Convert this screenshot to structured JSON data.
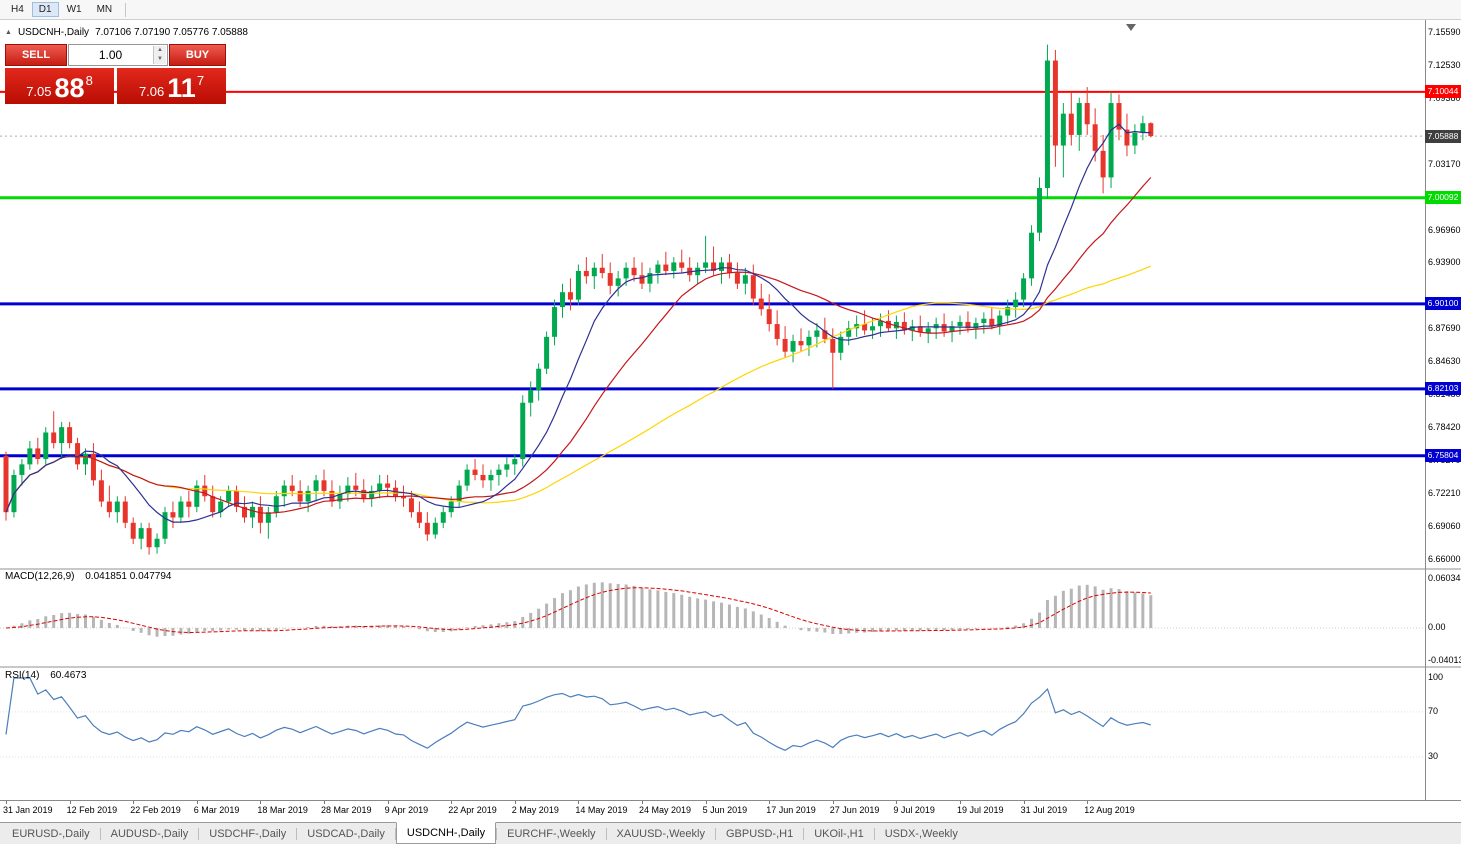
{
  "toolbar": {
    "timeframes": [
      {
        "label": "H4"
      },
      {
        "label": "D1"
      },
      {
        "label": "W1"
      },
      {
        "label": "MN"
      }
    ],
    "active": "D1"
  },
  "chart_header": {
    "collapse_icon": "▲",
    "symbol": "USDCNH-,Daily",
    "ohlc": "7.07106 7.07190 7.05776 7.05888"
  },
  "trade_panel": {
    "sell_label": "SELL",
    "buy_label": "BUY",
    "volume": "1.00",
    "sell_price": {
      "head": "7.05",
      "big": "88",
      "sup": "8"
    },
    "buy_price": {
      "head": "7.06",
      "big": "11",
      "sup": "7"
    }
  },
  "colors": {
    "bull": "#00a94f",
    "bear": "#e8352b",
    "ma_fast": "#2e3192",
    "ma_medium": "#c4161c",
    "ma_slow": "#ffd400",
    "macd_hist": "#b6b6b6",
    "macd_signal": "#e00000",
    "rsi": "#4a7ebb",
    "tag_current": "#3f3f3f"
  },
  "price_axis": {
    "labels": [
      7.1559,
      7.1253,
      7.0938,
      7.0317,
      6.9696,
      6.939,
      6.8769,
      6.8463,
      6.8148,
      6.7842,
      6.7527,
      6.7221,
      6.6906,
      6.66
    ]
  },
  "hlines": [
    {
      "price": 7.10044,
      "color": "#ff0000",
      "width": 2
    },
    {
      "price": 7.00092,
      "color": "#00dc00",
      "width": 3
    },
    {
      "price": 6.901,
      "color": "#0000d2",
      "width": 3
    },
    {
      "price": 6.82103,
      "color": "#0000d2",
      "width": 3
    },
    {
      "price": 6.75804,
      "color": "#0000d2",
      "width": 3
    }
  ],
  "current_price": 7.05888,
  "chart_data": {
    "type": "candlestick",
    "symbol": "USDCNH",
    "timeframe": "Daily",
    "x_labels": [
      "31 Jan 2019",
      "12 Feb 2019",
      "22 Feb 2019",
      "6 Mar 2019",
      "18 Mar 2019",
      "28 Mar 2019",
      "9 Apr 2019",
      "22 Apr 2019",
      "2 May 2019",
      "14 May 2019",
      "24 May 2019",
      "5 Jun 2019",
      "17 Jun 2019",
      "27 Jun 2019",
      "9 Jul 2019",
      "19 Jul 2019",
      "31 Jul 2019",
      "12 Aug 2019"
    ],
    "x_label_step": 8,
    "ma_periods": {
      "fast": 10,
      "medium": 21,
      "slow": 50
    },
    "candles": [
      [
        6.758,
        6.762,
        6.697,
        6.705
      ],
      [
        6.705,
        6.745,
        6.7,
        6.74
      ],
      [
        6.74,
        6.755,
        6.73,
        6.75
      ],
      [
        6.75,
        6.772,
        6.745,
        6.765
      ],
      [
        6.765,
        6.775,
        6.75,
        6.755
      ],
      [
        6.755,
        6.785,
        6.75,
        6.78
      ],
      [
        6.78,
        6.8,
        6.765,
        6.77
      ],
      [
        6.77,
        6.79,
        6.755,
        6.785
      ],
      [
        6.785,
        6.79,
        6.765,
        6.77
      ],
      [
        6.77,
        6.775,
        6.745,
        6.75
      ],
      [
        6.75,
        6.765,
        6.74,
        6.76
      ],
      [
        6.76,
        6.77,
        6.73,
        6.735
      ],
      [
        6.735,
        6.745,
        6.71,
        6.715
      ],
      [
        6.715,
        6.73,
        6.7,
        6.705
      ],
      [
        6.705,
        6.72,
        6.695,
        6.715
      ],
      [
        6.715,
        6.72,
        6.69,
        6.695
      ],
      [
        6.695,
        6.7,
        6.675,
        6.68
      ],
      [
        6.68,
        6.695,
        6.67,
        6.69
      ],
      [
        6.69,
        6.695,
        6.665,
        6.672
      ],
      [
        6.672,
        6.685,
        6.666,
        6.68
      ],
      [
        6.68,
        6.71,
        6.675,
        6.705
      ],
      [
        6.705,
        6.715,
        6.69,
        6.7
      ],
      [
        6.7,
        6.72,
        6.695,
        6.715
      ],
      [
        6.715,
        6.725,
        6.7,
        6.71
      ],
      [
        6.71,
        6.735,
        6.705,
        6.73
      ],
      [
        6.73,
        6.74,
        6.715,
        6.72
      ],
      [
        6.72,
        6.73,
        6.7,
        6.705
      ],
      [
        6.705,
        6.72,
        6.7,
        6.715
      ],
      [
        6.715,
        6.73,
        6.71,
        6.725
      ],
      [
        6.725,
        6.73,
        6.705,
        6.71
      ],
      [
        6.71,
        6.72,
        6.695,
        6.7
      ],
      [
        6.7,
        6.715,
        6.69,
        6.71
      ],
      [
        6.71,
        6.72,
        6.685,
        6.695
      ],
      [
        6.695,
        6.71,
        6.68,
        6.705
      ],
      [
        6.705,
        6.725,
        6.7,
        6.72
      ],
      [
        6.72,
        6.735,
        6.71,
        6.73
      ],
      [
        6.73,
        6.74,
        6.72,
        6.725
      ],
      [
        6.725,
        6.735,
        6.71,
        6.715
      ],
      [
        6.715,
        6.73,
        6.705,
        6.725
      ],
      [
        6.725,
        6.74,
        6.715,
        6.735
      ],
      [
        6.735,
        6.745,
        6.72,
        6.725
      ],
      [
        6.725,
        6.735,
        6.71,
        6.715
      ],
      [
        6.715,
        6.73,
        6.708,
        6.722
      ],
      [
        6.722,
        6.738,
        6.715,
        6.73
      ],
      [
        6.73,
        6.742,
        6.72,
        6.726
      ],
      [
        6.726,
        6.736,
        6.714,
        6.718
      ],
      [
        6.718,
        6.73,
        6.71,
        6.725
      ],
      [
        6.725,
        6.74,
        6.718,
        6.732
      ],
      [
        6.732,
        6.74,
        6.72,
        6.728
      ],
      [
        6.728,
        6.735,
        6.715,
        6.72
      ],
      [
        6.72,
        6.73,
        6.71,
        6.718
      ],
      [
        6.718,
        6.725,
        6.7,
        6.705
      ],
      [
        6.705,
        6.715,
        6.69,
        6.695
      ],
      [
        6.695,
        6.705,
        6.678,
        6.684
      ],
      [
        6.684,
        6.7,
        6.68,
        6.695
      ],
      [
        6.695,
        6.71,
        6.69,
        6.705
      ],
      [
        6.705,
        6.72,
        6.7,
        6.715
      ],
      [
        6.715,
        6.735,
        6.71,
        6.73
      ],
      [
        6.73,
        6.75,
        6.725,
        6.745
      ],
      [
        6.745,
        6.755,
        6.735,
        6.74
      ],
      [
        6.74,
        6.75,
        6.728,
        6.735
      ],
      [
        6.735,
        6.745,
        6.725,
        6.74
      ],
      [
        6.74,
        6.75,
        6.73,
        6.745
      ],
      [
        6.745,
        6.757,
        6.738,
        6.75
      ],
      [
        6.75,
        6.76,
        6.74,
        6.755
      ],
      [
        6.755,
        6.815,
        6.748,
        6.808
      ],
      [
        6.808,
        6.828,
        6.795,
        6.82
      ],
      [
        6.82,
        6.845,
        6.81,
        6.84
      ],
      [
        6.84,
        6.875,
        6.835,
        6.87
      ],
      [
        6.87,
        6.905,
        6.862,
        6.898
      ],
      [
        6.898,
        6.92,
        6.888,
        6.912
      ],
      [
        6.912,
        6.925,
        6.895,
        6.905
      ],
      [
        6.905,
        6.938,
        6.9,
        6.932
      ],
      [
        6.932,
        6.945,
        6.92,
        6.927
      ],
      [
        6.927,
        6.94,
        6.915,
        6.935
      ],
      [
        6.935,
        6.948,
        6.925,
        6.93
      ],
      [
        6.93,
        6.94,
        6.91,
        6.918
      ],
      [
        6.918,
        6.932,
        6.908,
        6.925
      ],
      [
        6.925,
        6.94,
        6.918,
        6.935
      ],
      [
        6.935,
        6.945,
        6.922,
        6.928
      ],
      [
        6.928,
        6.94,
        6.915,
        6.92
      ],
      [
        6.92,
        6.935,
        6.912,
        6.93
      ],
      [
        6.93,
        6.942,
        6.92,
        6.938
      ],
      [
        6.938,
        6.95,
        6.928,
        6.932
      ],
      [
        6.932,
        6.945,
        6.925,
        6.94
      ],
      [
        6.94,
        6.952,
        6.93,
        6.935
      ],
      [
        6.935,
        6.945,
        6.922,
        6.928
      ],
      [
        6.928,
        6.94,
        6.92,
        6.935
      ],
      [
        6.935,
        6.965,
        6.93,
        6.94
      ],
      [
        6.94,
        6.955,
        6.928,
        6.932
      ],
      [
        6.932,
        6.945,
        6.92,
        6.94
      ],
      [
        6.94,
        6.948,
        6.925,
        6.93
      ],
      [
        6.93,
        6.94,
        6.915,
        6.92
      ],
      [
        6.92,
        6.935,
        6.91,
        6.928
      ],
      [
        6.928,
        6.938,
        6.9,
        6.906
      ],
      [
        6.906,
        6.92,
        6.89,
        6.896
      ],
      [
        6.896,
        6.91,
        6.875,
        6.882
      ],
      [
        6.882,
        6.895,
        6.862,
        6.868
      ],
      [
        6.868,
        6.88,
        6.85,
        6.856
      ],
      [
        6.856,
        6.872,
        6.846,
        6.866
      ],
      [
        6.866,
        6.878,
        6.856,
        6.862
      ],
      [
        6.862,
        6.876,
        6.852,
        6.87
      ],
      [
        6.87,
        6.883,
        6.86,
        6.876
      ],
      [
        6.876,
        6.888,
        6.864,
        6.868
      ],
      [
        6.868,
        6.878,
        6.821,
        6.855
      ],
      [
        6.855,
        6.875,
        6.848,
        6.87
      ],
      [
        6.87,
        6.885,
        6.862,
        6.878
      ],
      [
        6.878,
        6.89,
        6.87,
        6.882
      ],
      [
        6.882,
        6.895,
        6.872,
        6.876
      ],
      [
        6.876,
        6.888,
        6.868,
        6.88
      ],
      [
        6.88,
        6.892,
        6.87,
        6.885
      ],
      [
        6.885,
        6.895,
        6.875,
        6.878
      ],
      [
        6.878,
        6.89,
        6.868,
        6.884
      ],
      [
        6.884,
        6.893,
        6.872,
        6.876
      ],
      [
        6.876,
        6.886,
        6.866,
        6.88
      ],
      [
        6.88,
        6.89,
        6.87,
        6.874
      ],
      [
        6.874,
        6.884,
        6.864,
        6.878
      ],
      [
        6.878,
        6.888,
        6.868,
        6.882
      ],
      [
        6.882,
        6.892,
        6.87,
        6.875
      ],
      [
        6.875,
        6.885,
        6.865,
        6.88
      ],
      [
        6.88,
        6.89,
        6.872,
        6.884
      ],
      [
        6.884,
        6.894,
        6.874,
        6.878
      ],
      [
        6.878,
        6.888,
        6.868,
        6.883
      ],
      [
        6.883,
        6.893,
        6.873,
        6.887
      ],
      [
        6.887,
        6.897,
        6.877,
        6.88
      ],
      [
        6.88,
        6.895,
        6.872,
        6.89
      ],
      [
        6.89,
        6.905,
        6.882,
        6.898
      ],
      [
        6.898,
        6.912,
        6.888,
        6.905
      ],
      [
        6.905,
        6.93,
        6.898,
        6.925
      ],
      [
        6.925,
        6.975,
        6.918,
        6.968
      ],
      [
        6.968,
        7.02,
        6.96,
        7.01
      ],
      [
        7.01,
        7.145,
        7.0,
        7.13
      ],
      [
        7.13,
        7.14,
        7.03,
        7.05
      ],
      [
        7.05,
        7.09,
        7.02,
        7.08
      ],
      [
        7.08,
        7.1,
        7.05,
        7.06
      ],
      [
        7.06,
        7.095,
        7.045,
        7.09
      ],
      [
        7.09,
        7.105,
        7.06,
        7.07
      ],
      [
        7.07,
        7.085,
        7.035,
        7.045
      ],
      [
        7.045,
        7.06,
        7.005,
        7.02
      ],
      [
        7.02,
        7.1,
        7.01,
        7.09
      ],
      [
        7.09,
        7.098,
        7.055,
        7.065
      ],
      [
        7.065,
        7.08,
        7.04,
        7.05
      ],
      [
        7.05,
        7.07,
        7.042,
        7.062
      ],
      [
        7.062,
        7.078,
        7.055,
        7.071
      ],
      [
        7.07106,
        7.0719,
        7.05776,
        7.05888
      ]
    ],
    "indicators": {
      "macd": {
        "label": "MACD(12,26,9)",
        "values": "0.041851 0.047794",
        "params": [
          12,
          26,
          9
        ],
        "scale": [
          {
            "text": "0.060343",
            "value": 0.060343
          },
          {
            "text": "0.00",
            "value": 0
          },
          {
            "text": "-0.040136",
            "value": -0.040136
          }
        ]
      },
      "rsi": {
        "label": "RSI(14)",
        "value": "60.4673",
        "period": 14,
        "levels": [
          70,
          30
        ],
        "scale": [
          {
            "text": "100",
            "value": 100
          },
          {
            "text": "70",
            "value": 70
          },
          {
            "text": "30",
            "value": 30
          }
        ]
      }
    }
  },
  "tabs": {
    "items": [
      {
        "label": "EURUSD-,Daily"
      },
      {
        "label": "AUDUSD-,Daily"
      },
      {
        "label": "USDCHF-,Daily"
      },
      {
        "label": "USDCAD-,Daily"
      },
      {
        "label": "USDCNH-,Daily"
      },
      {
        "label": "EURCHF-,Weekly"
      },
      {
        "label": "XAUUSD-,Weekly"
      },
      {
        "label": "GBPUSD-,H1"
      },
      {
        "label": "UKOil-,H1"
      },
      {
        "label": "USDX-,Weekly"
      }
    ],
    "active_index": 4
  }
}
